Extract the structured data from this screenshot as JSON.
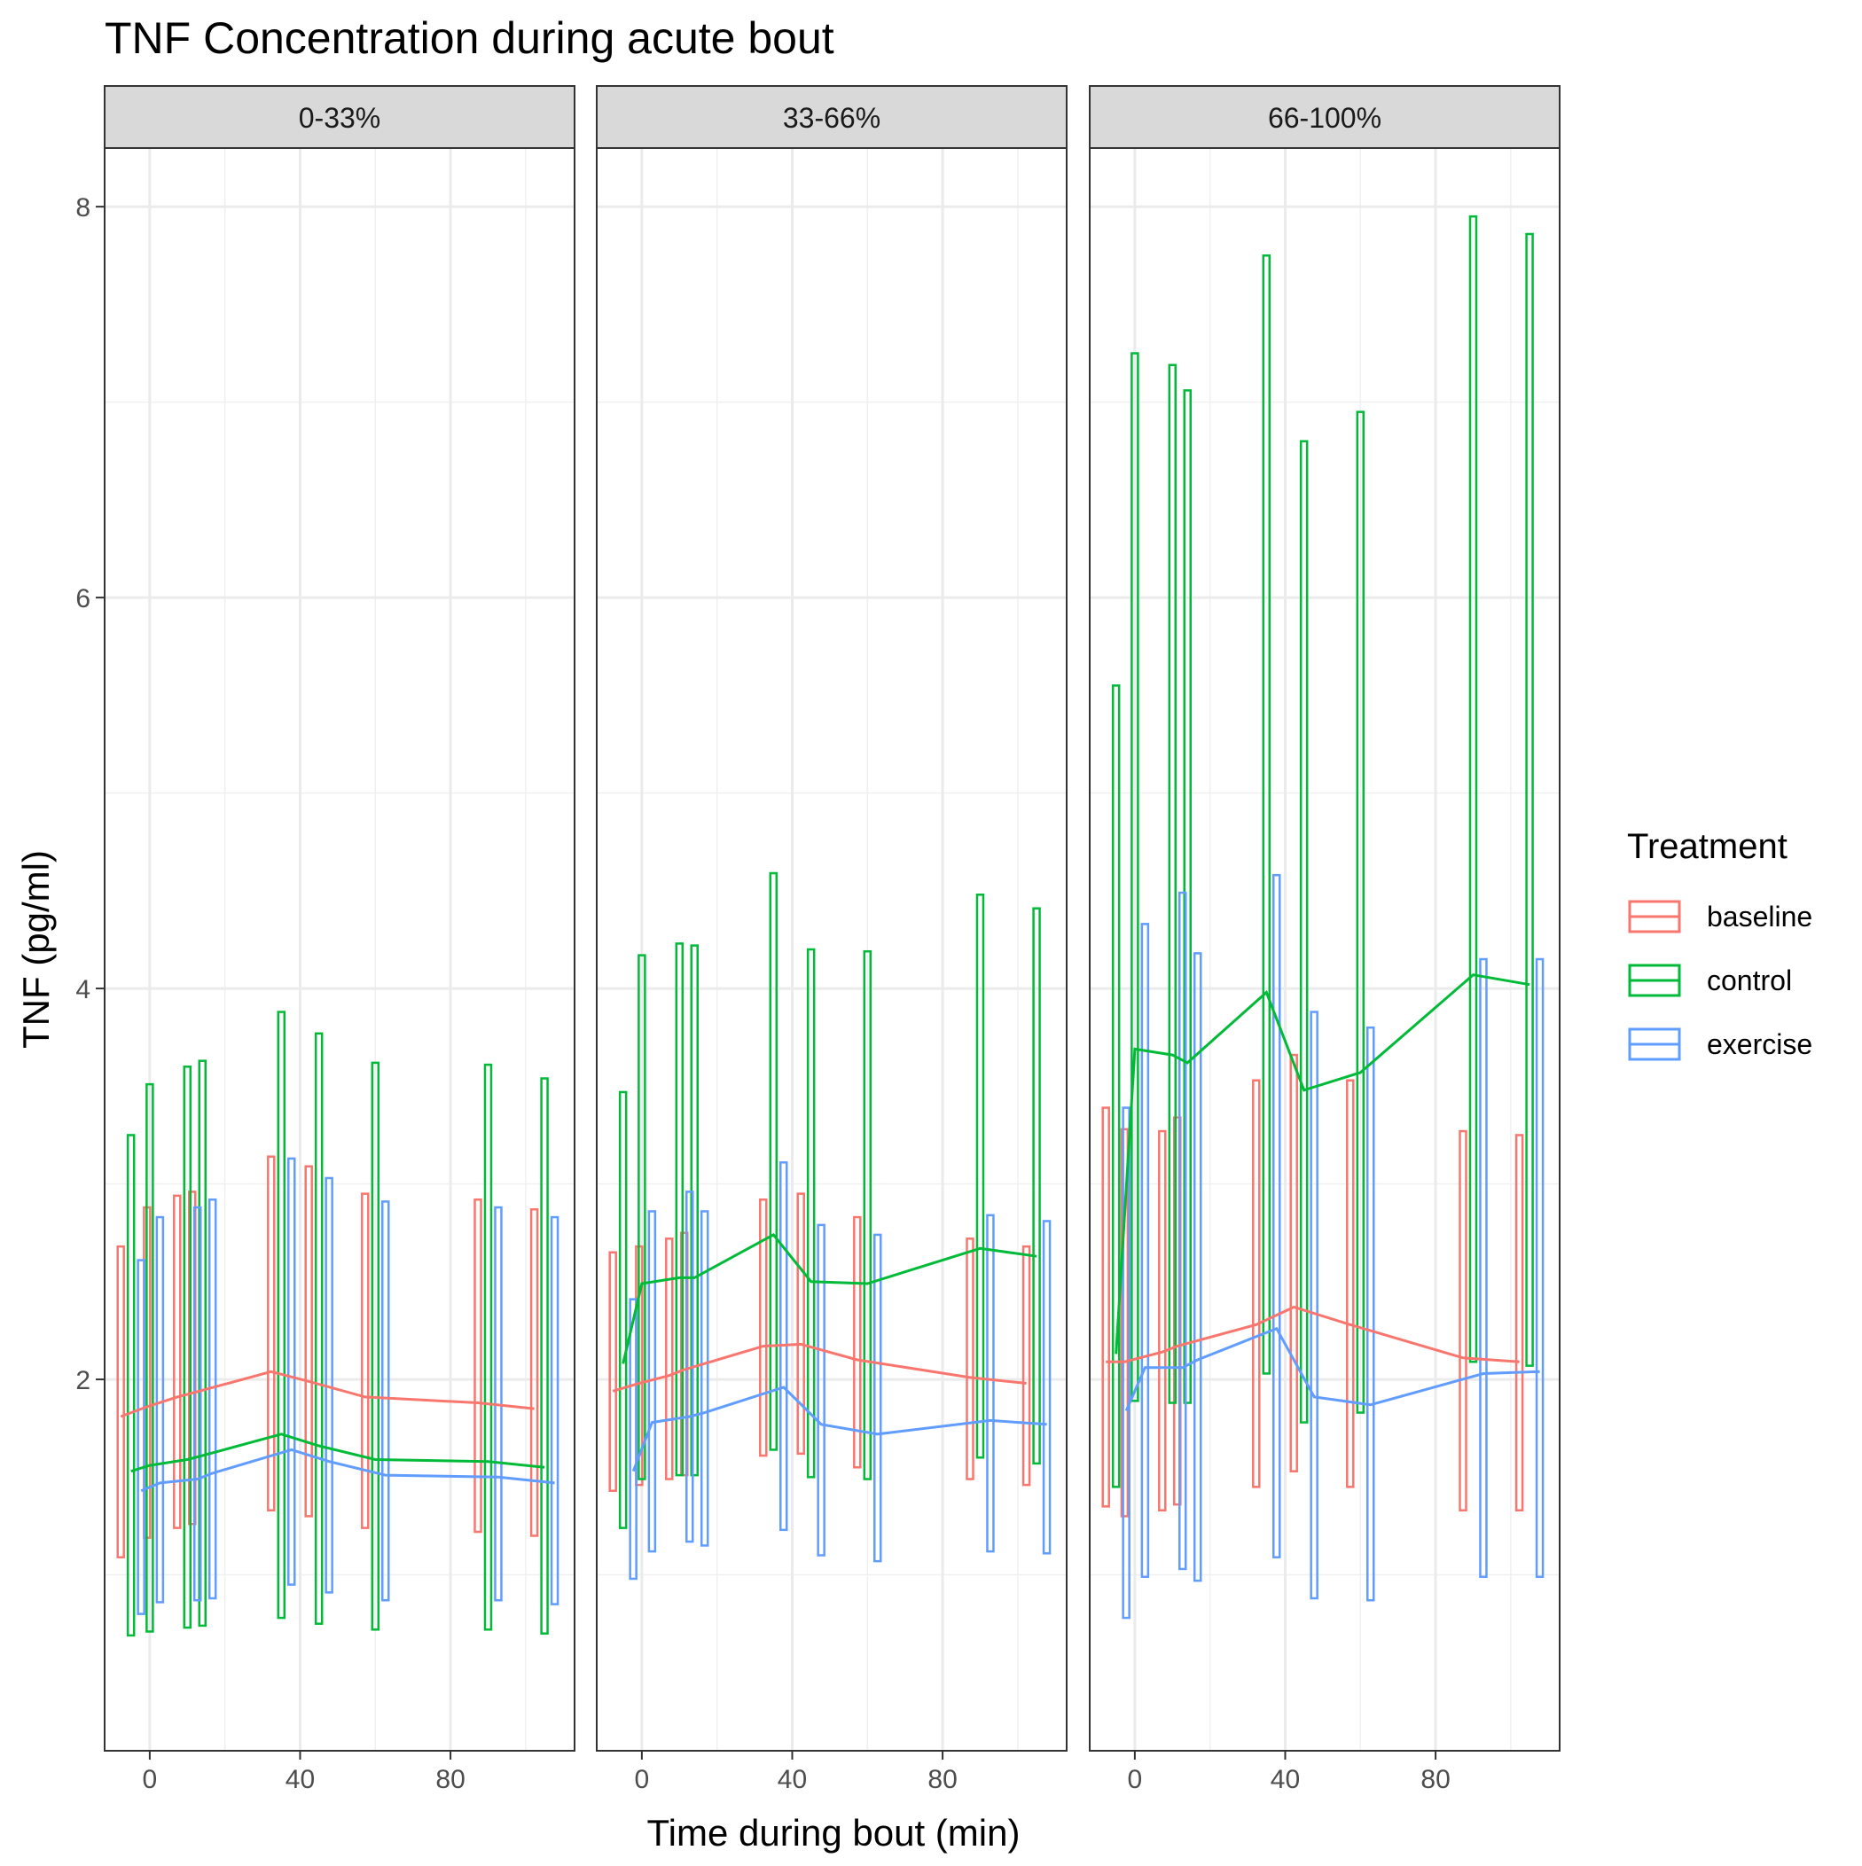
{
  "chart_data": {
    "type": "line",
    "title": "TNF Concentration during acute bout",
    "xlabel": "Time during bout (min)",
    "ylabel": "TNF (pg/ml)",
    "xlim": [
      -12,
      113
    ],
    "ylim": [
      0.1,
      8.3
    ],
    "x_ticks": [
      0,
      40,
      80
    ],
    "y_ticks": [
      2,
      4,
      6,
      8
    ],
    "grid": true,
    "legend": {
      "title": "Treatment",
      "position": "right",
      "entries": [
        "baseline",
        "control",
        "exercise"
      ]
    },
    "colors": {
      "baseline": "#F8766D",
      "control": "#00BA38",
      "exercise": "#619CFF"
    },
    "facets": [
      {
        "label": "0-33%",
        "series": [
          {
            "name": "baseline",
            "points": [
              {
                "x": -7,
                "y": 1.81,
                "lo": 1.09,
                "hi": 2.68
              },
              {
                "x": 0,
                "y": 1.86,
                "lo": 1.19,
                "hi": 2.88
              },
              {
                "x": 8,
                "y": 1.91,
                "lo": 1.24,
                "hi": 2.94
              },
              {
                "x": 12,
                "y": 1.93,
                "lo": 1.26,
                "hi": 2.96
              },
              {
                "x": 33,
                "y": 2.04,
                "lo": 1.33,
                "hi": 3.14
              },
              {
                "x": 43,
                "y": 1.99,
                "lo": 1.3,
                "hi": 3.09
              },
              {
                "x": 58,
                "y": 1.91,
                "lo": 1.24,
                "hi": 2.95
              },
              {
                "x": 88,
                "y": 1.88,
                "lo": 1.22,
                "hi": 2.92
              },
              {
                "x": 103,
                "y": 1.85,
                "lo": 1.2,
                "hi": 2.87
              }
            ]
          },
          {
            "name": "control",
            "points": [
              {
                "x": -5,
                "y": 1.53,
                "lo": 0.69,
                "hi": 3.25
              },
              {
                "x": 0,
                "y": 1.56,
                "lo": 0.71,
                "hi": 3.51
              },
              {
                "x": 10,
                "y": 1.59,
                "lo": 0.73,
                "hi": 3.6
              },
              {
                "x": 14,
                "y": 1.61,
                "lo": 0.74,
                "hi": 3.63
              },
              {
                "x": 35,
                "y": 1.72,
                "lo": 0.78,
                "hi": 3.88
              },
              {
                "x": 45,
                "y": 1.66,
                "lo": 0.75,
                "hi": 3.77
              },
              {
                "x": 60,
                "y": 1.59,
                "lo": 0.72,
                "hi": 3.62
              },
              {
                "x": 90,
                "y": 1.58,
                "lo": 0.72,
                "hi": 3.61
              },
              {
                "x": 105,
                "y": 1.55,
                "lo": 0.7,
                "hi": 3.54
              }
            ]
          },
          {
            "name": "exercise",
            "points": [
              {
                "x": -3,
                "y": 1.43,
                "lo": 0.8,
                "hi": 2.61
              },
              {
                "x": 2,
                "y": 1.47,
                "lo": 0.86,
                "hi": 2.83
              },
              {
                "x": 12,
                "y": 1.49,
                "lo": 0.87,
                "hi": 2.88
              },
              {
                "x": 16,
                "y": 1.52,
                "lo": 0.88,
                "hi": 2.92
              },
              {
                "x": 37,
                "y": 1.64,
                "lo": 0.95,
                "hi": 3.13
              },
              {
                "x": 47,
                "y": 1.58,
                "lo": 0.91,
                "hi": 3.03
              },
              {
                "x": 62,
                "y": 1.51,
                "lo": 0.87,
                "hi": 2.91
              },
              {
                "x": 92,
                "y": 1.5,
                "lo": 0.87,
                "hi": 2.88
              },
              {
                "x": 107,
                "y": 1.47,
                "lo": 0.85,
                "hi": 2.83
              }
            ]
          }
        ]
      },
      {
        "label": "33-66%",
        "series": [
          {
            "name": "baseline",
            "points": [
              {
                "x": -7,
                "y": 1.94,
                "lo": 1.43,
                "hi": 2.65
              },
              {
                "x": 0,
                "y": 1.98,
                "lo": 1.46,
                "hi": 2.68
              },
              {
                "x": 8,
                "y": 2.02,
                "lo": 1.49,
                "hi": 2.72
              },
              {
                "x": 12,
                "y": 2.05,
                "lo": 1.51,
                "hi": 2.75
              },
              {
                "x": 33,
                "y": 2.17,
                "lo": 1.61,
                "hi": 2.92
              },
              {
                "x": 43,
                "y": 2.18,
                "lo": 1.62,
                "hi": 2.95
              },
              {
                "x": 58,
                "y": 2.1,
                "lo": 1.55,
                "hi": 2.83
              },
              {
                "x": 88,
                "y": 2.01,
                "lo": 1.49,
                "hi": 2.72
              },
              {
                "x": 103,
                "y": 1.98,
                "lo": 1.46,
                "hi": 2.68
              }
            ]
          },
          {
            "name": "control",
            "points": [
              {
                "x": -5,
                "y": 2.08,
                "lo": 1.24,
                "hi": 3.47
              },
              {
                "x": 0,
                "y": 2.49,
                "lo": 1.49,
                "hi": 4.17
              },
              {
                "x": 10,
                "y": 2.52,
                "lo": 1.51,
                "hi": 4.23
              },
              {
                "x": 14,
                "y": 2.52,
                "lo": 1.51,
                "hi": 4.22
              },
              {
                "x": 35,
                "y": 2.74,
                "lo": 1.64,
                "hi": 4.59
              },
              {
                "x": 45,
                "y": 2.5,
                "lo": 1.5,
                "hi": 4.2
              },
              {
                "x": 60,
                "y": 2.49,
                "lo": 1.49,
                "hi": 4.19
              },
              {
                "x": 90,
                "y": 2.67,
                "lo": 1.6,
                "hi": 4.48
              },
              {
                "x": 105,
                "y": 2.63,
                "lo": 1.57,
                "hi": 4.41
              }
            ]
          },
          {
            "name": "exercise",
            "points": [
              {
                "x": -3,
                "y": 1.53,
                "lo": 0.98,
                "hi": 2.41
              },
              {
                "x": 2,
                "y": 1.78,
                "lo": 1.12,
                "hi": 2.86
              },
              {
                "x": 12,
                "y": 1.81,
                "lo": 1.17,
                "hi": 2.96
              },
              {
                "x": 16,
                "y": 1.83,
                "lo": 1.15,
                "hi": 2.86
              },
              {
                "x": 37,
                "y": 1.96,
                "lo": 1.23,
                "hi": 3.11
              },
              {
                "x": 47,
                "y": 1.77,
                "lo": 1.1,
                "hi": 2.79
              },
              {
                "x": 62,
                "y": 1.72,
                "lo": 1.07,
                "hi": 2.74
              },
              {
                "x": 92,
                "y": 1.79,
                "lo": 1.12,
                "hi": 2.84
              },
              {
                "x": 107,
                "y": 1.77,
                "lo": 1.11,
                "hi": 2.81
              }
            ]
          }
        ]
      },
      {
        "label": "66-100%",
        "series": [
          {
            "name": "baseline",
            "points": [
              {
                "x": -7,
                "y": 2.09,
                "lo": 1.35,
                "hi": 3.39
              },
              {
                "x": -2,
                "y": 2.09,
                "lo": 1.3,
                "hi": 3.28
              },
              {
                "x": 8,
                "y": 2.14,
                "lo": 1.33,
                "hi": 3.27
              },
              {
                "x": 12,
                "y": 2.17,
                "lo": 1.36,
                "hi": 3.34
              },
              {
                "x": 33,
                "y": 2.28,
                "lo": 1.45,
                "hi": 3.53
              },
              {
                "x": 43,
                "y": 2.37,
                "lo": 1.53,
                "hi": 3.66
              },
              {
                "x": 58,
                "y": 2.28,
                "lo": 1.45,
                "hi": 3.53
              },
              {
                "x": 88,
                "y": 2.11,
                "lo": 1.33,
                "hi": 3.27
              },
              {
                "x": 103,
                "y": 2.09,
                "lo": 1.33,
                "hi": 3.25
              }
            ]
          },
          {
            "name": "control",
            "points": [
              {
                "x": -5,
                "y": 2.13,
                "lo": 1.45,
                "hi": 5.55
              },
              {
                "x": 0,
                "y": 3.69,
                "lo": 1.89,
                "hi": 7.25
              },
              {
                "x": 10,
                "y": 3.66,
                "lo": 1.88,
                "hi": 7.19
              },
              {
                "x": 14,
                "y": 3.62,
                "lo": 1.88,
                "hi": 7.06
              },
              {
                "x": 35,
                "y": 3.98,
                "lo": 2.03,
                "hi": 7.75
              },
              {
                "x": 45,
                "y": 3.48,
                "lo": 1.78,
                "hi": 6.8
              },
              {
                "x": 60,
                "y": 3.57,
                "lo": 1.83,
                "hi": 6.95
              },
              {
                "x": 90,
                "y": 4.07,
                "lo": 2.09,
                "hi": 7.95
              },
              {
                "x": 105,
                "y": 4.02,
                "lo": 2.07,
                "hi": 7.86
              }
            ]
          },
          {
            "name": "exercise",
            "points": [
              {
                "x": -3,
                "y": 1.84,
                "lo": 0.78,
                "hi": 3.39
              },
              {
                "x": 2,
                "y": 2.06,
                "lo": 0.99,
                "hi": 4.33
              },
              {
                "x": 12,
                "y": 2.06,
                "lo": 1.03,
                "hi": 4.49
              },
              {
                "x": 16,
                "y": 2.1,
                "lo": 0.97,
                "hi": 4.18
              },
              {
                "x": 37,
                "y": 2.26,
                "lo": 1.09,
                "hi": 4.58
              },
              {
                "x": 47,
                "y": 1.91,
                "lo": 0.88,
                "hi": 3.88
              },
              {
                "x": 62,
                "y": 1.87,
                "lo": 0.87,
                "hi": 3.8
              },
              {
                "x": 92,
                "y": 2.03,
                "lo": 0.99,
                "hi": 4.15
              },
              {
                "x": 107,
                "y": 2.04,
                "lo": 0.99,
                "hi": 4.15
              }
            ]
          }
        ]
      }
    ]
  }
}
